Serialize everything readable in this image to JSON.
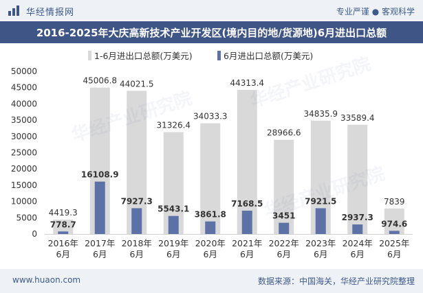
{
  "header": {
    "brand": "华经情报网",
    "slogan": "专业严谨 ● 客观科学"
  },
  "title": "2016-2025年大庆高新技术产业开发区(境内目的地/货源地)6月进出口总额",
  "footer": {
    "website": "www.huaon.com",
    "source": "数据来源：中国海关，华经产业研究院整理"
  },
  "colors": {
    "header_bg": "#eef1f6",
    "title_bg": "#3e5586",
    "series1": "#d9d9d9",
    "series2": "#5c72a6"
  },
  "chart_data": {
    "type": "bar",
    "categories": [
      "2016年\n6月",
      "2017年\n6月",
      "2018年\n6月",
      "2019年\n6月",
      "2020年\n6月",
      "2021年\n6月",
      "2022年\n6月",
      "2023年\n6月",
      "2024年\n6月",
      "2025年\n6月"
    ],
    "series": [
      {
        "name": "1-6月进出口总额(万美元)",
        "values": [
          4419.3,
          45006.8,
          44021.5,
          31326.4,
          34033.3,
          44313.4,
          28966.6,
          34835.9,
          33589.4,
          7839
        ],
        "labels": [
          "4419.3",
          "45006.8",
          "44021.5",
          "31326.4",
          "34033.3",
          "44313.4",
          "28966.6",
          "34835.9",
          "33589.4",
          "7839"
        ]
      },
      {
        "name": "6月进出口总额(万美元)",
        "values": [
          778.7,
          16108.9,
          7927.3,
          5543.1,
          3861.8,
          7168.5,
          3451,
          7921.5,
          2937.3,
          974.6
        ],
        "labels": [
          "778.7",
          "16108.9",
          "7927.3",
          "5543.1",
          "3861.8",
          "7168.5",
          "3451",
          "7921.5",
          "2937.3",
          "974.6"
        ]
      }
    ],
    "ylim": [
      0,
      50000
    ],
    "yticks": [
      0,
      5000,
      10000,
      15000,
      20000,
      25000,
      30000,
      35000,
      40000,
      45000,
      50000
    ],
    "legend": "top-left"
  }
}
